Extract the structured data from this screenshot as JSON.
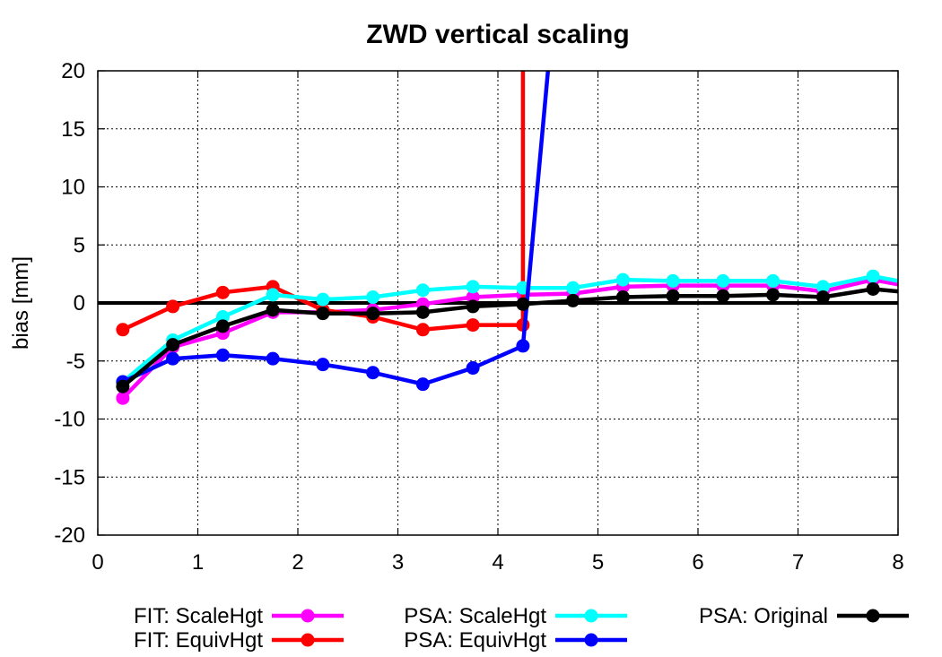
{
  "chart_data": {
    "type": "line",
    "title": "ZWD vertical scaling",
    "xlabel": "",
    "ylabel": "bias [mm]",
    "xlim": [
      0,
      8
    ],
    "ylim": [
      -20,
      20
    ],
    "xticks": [
      0,
      1,
      2,
      3,
      4,
      5,
      6,
      7,
      8
    ],
    "yticks": [
      -20,
      -15,
      -10,
      -5,
      0,
      5,
      10,
      15,
      20
    ],
    "grid": true,
    "legend": "bottom",
    "zero_line": true,
    "series": [
      {
        "name": "FIT: ScaleHgt",
        "color": "#ff00ff",
        "x": [
          0.25,
          0.75,
          1.25,
          1.75,
          2.25,
          2.75,
          3.25,
          3.75,
          4.25,
          4.75,
          5.25,
          5.75,
          6.25,
          6.75,
          7.25,
          7.75,
          8.0
        ],
        "y": [
          -8.2,
          -3.8,
          -2.6,
          -0.8,
          -0.8,
          -0.6,
          -0.1,
          0.5,
          0.7,
          0.8,
          1.4,
          1.5,
          1.5,
          1.5,
          1.0,
          2.0,
          1.6
        ]
      },
      {
        "name": "FIT: EquivHgt",
        "color": "#ff0000",
        "x": [
          0.25,
          0.75,
          1.25,
          1.75,
          2.25,
          2.75,
          3.25,
          3.75,
          4.25,
          4.25,
          4.25
        ],
        "y": [
          -2.3,
          -0.3,
          0.9,
          1.4,
          -0.6,
          -1.2,
          -2.3,
          -1.9,
          -1.9,
          0.7,
          20
        ]
      },
      {
        "name": "PSA: ScaleHgt",
        "color": "#00ffff",
        "x": [
          0.25,
          0.75,
          1.25,
          1.75,
          2.25,
          2.75,
          3.25,
          3.75,
          4.25,
          4.75,
          5.25,
          5.75,
          6.25,
          6.75,
          7.25,
          7.75,
          8.0
        ],
        "y": [
          -6.8,
          -3.2,
          -1.2,
          0.7,
          0.3,
          0.5,
          1.1,
          1.4,
          1.3,
          1.3,
          2.0,
          1.9,
          1.9,
          1.9,
          1.4,
          2.3,
          1.9
        ]
      },
      {
        "name": "PSA: EquivHgt",
        "color": "#0000ff",
        "x": [
          0.25,
          0.75,
          1.25,
          1.75,
          2.25,
          2.75,
          3.25,
          3.75,
          4.25,
          4.5
        ],
        "y": [
          -6.8,
          -4.8,
          -4.5,
          -4.8,
          -5.3,
          -6.0,
          -7.0,
          -5.6,
          -3.7,
          20
        ]
      },
      {
        "name": "PSA: Original",
        "color": "#000000",
        "x": [
          0.25,
          0.75,
          1.25,
          1.75,
          2.25,
          2.75,
          3.25,
          3.75,
          4.25,
          4.75,
          5.25,
          5.75,
          6.25,
          6.75,
          7.25,
          7.75,
          8.0
        ],
        "y": [
          -7.2,
          -3.6,
          -2.0,
          -0.6,
          -0.9,
          -0.9,
          -0.8,
          -0.3,
          -0.1,
          0.2,
          0.5,
          0.6,
          0.6,
          0.7,
          0.5,
          1.2,
          1.0
        ]
      }
    ],
    "markers": {
      "FIT: EquivHgt": [
        0,
        1,
        2,
        3,
        4,
        5,
        6,
        7,
        8
      ],
      "PSA: EquivHgt": [
        0,
        1,
        2,
        3,
        4,
        5,
        6,
        7,
        8
      ]
    }
  }
}
